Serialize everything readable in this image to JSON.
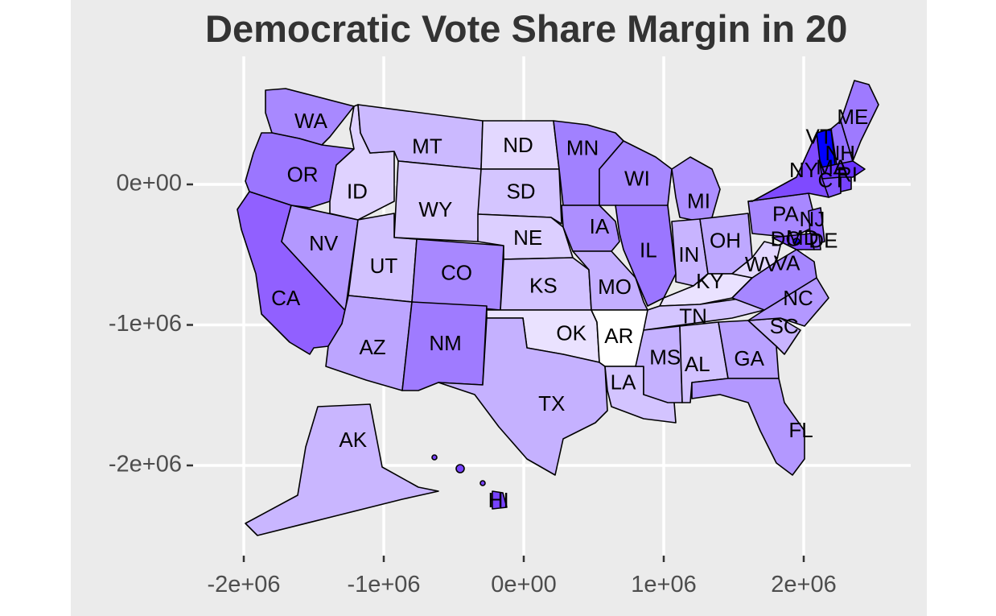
{
  "chart_data": {
    "type": "choropleth-map",
    "title": "Democratic Vote Share Margin in 20",
    "xlabel": "",
    "ylabel": "",
    "x_ticks": [
      {
        "value": -2000000,
        "label": "-2e+06"
      },
      {
        "value": -1000000,
        "label": "-1e+06"
      },
      {
        "value": 0,
        "label": "0e+00"
      },
      {
        "value": 1000000,
        "label": "1e+06"
      },
      {
        "value": 2000000,
        "label": "2e+06"
      }
    ],
    "y_ticks": [
      {
        "value": 0,
        "label": "0e+00"
      },
      {
        "value": -1000000,
        "label": "-1e+06"
      },
      {
        "value": -2000000,
        "label": "-2e+06"
      }
    ],
    "xlim": [
      -2800000,
      2800000
    ],
    "ylim": [
      -2700000,
      650000
    ],
    "grid": true,
    "background": "#ebebeb",
    "gridline_color": "#ffffff",
    "low_color": "#ffffff",
    "high_color": "#0000ff",
    "border_color": "#000000",
    "states": [
      {
        "label": "WA",
        "x": -1520000,
        "y": 440000,
        "fill": "#a889ff"
      },
      {
        "label": "OR",
        "x": -1580000,
        "y": 60000,
        "fill": "#9b76ff"
      },
      {
        "label": "CA",
        "x": -1700000,
        "y": -820000,
        "fill": "#9160ff"
      },
      {
        "label": "NV",
        "x": -1430000,
        "y": -430000,
        "fill": "#b398ff"
      },
      {
        "label": "ID",
        "x": -1190000,
        "y": -60000,
        "fill": "#dfd2ff"
      },
      {
        "label": "MT",
        "x": -690000,
        "y": 260000,
        "fill": "#cbb9ff"
      },
      {
        "label": "WY",
        "x": -630000,
        "y": -190000,
        "fill": "#d9caff"
      },
      {
        "label": "UT",
        "x": -1000000,
        "y": -590000,
        "fill": "#d2c2ff"
      },
      {
        "label": "AZ",
        "x": -1080000,
        "y": -1170000,
        "fill": "#bca5ff"
      },
      {
        "label": "CO",
        "x": -480000,
        "y": -640000,
        "fill": "#a888ff"
      },
      {
        "label": "NM",
        "x": -560000,
        "y": -1140000,
        "fill": "#9f7bff"
      },
      {
        "label": "ND",
        "x": -40000,
        "y": 270000,
        "fill": "#e3d8ff"
      },
      {
        "label": "SD",
        "x": -20000,
        "y": -60000,
        "fill": "#d4c5ff"
      },
      {
        "label": "NE",
        "x": 30000,
        "y": -390000,
        "fill": "#dccfff"
      },
      {
        "label": "KS",
        "x": 140000,
        "y": -730000,
        "fill": "#d2c2ff"
      },
      {
        "label": "OK",
        "x": 340000,
        "y": -1070000,
        "fill": "#eae2ff"
      },
      {
        "label": "TX",
        "x": 200000,
        "y": -1570000,
        "fill": "#c5b1ff"
      },
      {
        "label": "MN",
        "x": 420000,
        "y": 250000,
        "fill": "#a181ff"
      },
      {
        "label": "IA",
        "x": 540000,
        "y": -310000,
        "fill": "#ad8fff"
      },
      {
        "label": "MO",
        "x": 650000,
        "y": -740000,
        "fill": "#c4afff"
      },
      {
        "label": "AR",
        "x": 680000,
        "y": -1090000,
        "fill": "#ffffff"
      },
      {
        "label": "LA",
        "x": 710000,
        "y": -1420000,
        "fill": "#d3c4ff"
      },
      {
        "label": "WI",
        "x": 810000,
        "y": 30000,
        "fill": "#a687ff"
      },
      {
        "label": "IL",
        "x": 890000,
        "y": -480000,
        "fill": "#9b76ff"
      },
      {
        "label": "MI",
        "x": 1250000,
        "y": -130000,
        "fill": "#ad8fff"
      },
      {
        "label": "IN",
        "x": 1180000,
        "y": -510000,
        "fill": "#c8b4ff"
      },
      {
        "label": "OH",
        "x": 1440000,
        "y": -410000,
        "fill": "#bea8ff"
      },
      {
        "label": "KY",
        "x": 1330000,
        "y": -700000,
        "fill": "#eae2ff"
      },
      {
        "label": "TN",
        "x": 1210000,
        "y": -950000,
        "fill": "#d4c5ff"
      },
      {
        "label": "MS",
        "x": 1010000,
        "y": -1240000,
        "fill": "#c5b1ff"
      },
      {
        "label": "AL",
        "x": 1240000,
        "y": -1290000,
        "fill": "#d2c2ff"
      },
      {
        "label": "GA",
        "x": 1610000,
        "y": -1250000,
        "fill": "#b9a1ff"
      },
      {
        "label": "FL",
        "x": 1980000,
        "y": -1760000,
        "fill": "#b398ff"
      },
      {
        "label": "SC",
        "x": 1860000,
        "y": -1020000,
        "fill": "#c8b4ff"
      },
      {
        "label": "NC",
        "x": 1960000,
        "y": -820000,
        "fill": "#b398ff"
      },
      {
        "label": "VA",
        "x": 1880000,
        "y": -570000,
        "fill": "#a687ff"
      },
      {
        "label": "WV",
        "x": 1700000,
        "y": -580000,
        "fill": "#e3d8ff"
      },
      {
        "label": "PA",
        "x": 1870000,
        "y": -220000,
        "fill": "#a888ff"
      },
      {
        "label": "NY",
        "x": 2000000,
        "y": 90000,
        "fill": "#7f4aff"
      },
      {
        "label": "VT",
        "x": 2110000,
        "y": 330000,
        "fill": "#0000ff"
      },
      {
        "label": "NH",
        "x": 2260000,
        "y": 210000,
        "fill": "#9470ff"
      },
      {
        "label": "ME",
        "x": 2350000,
        "y": 470000,
        "fill": "#9e7aff"
      },
      {
        "label": "MA",
        "x": 2200000,
        "y": 110000,
        "fill": "#6a33ff"
      },
      {
        "label": "RI",
        "x": 2310000,
        "y": 60000,
        "fill": "#7743ff"
      },
      {
        "label": "CT",
        "x": 2200000,
        "y": 20000,
        "fill": "#8556ff"
      },
      {
        "label": "NJ",
        "x": 2060000,
        "y": -260000,
        "fill": "#8c60ff"
      },
      {
        "label": "MD",
        "x": 1990000,
        "y": -390000,
        "fill": "#7e4bff"
      },
      {
        "label": "DE",
        "x": 2140000,
        "y": -410000,
        "fill": "#9069ff"
      },
      {
        "label": "DC",
        "x": 1870000,
        "y": -400000,
        "fill": "#1a00ff"
      },
      {
        "label": "AK",
        "x": -1220000,
        "y": -1830000,
        "fill": "#c9b6ff"
      },
      {
        "label": "HI",
        "x": -180000,
        "y": -2260000,
        "fill": "#7743ff"
      }
    ]
  }
}
